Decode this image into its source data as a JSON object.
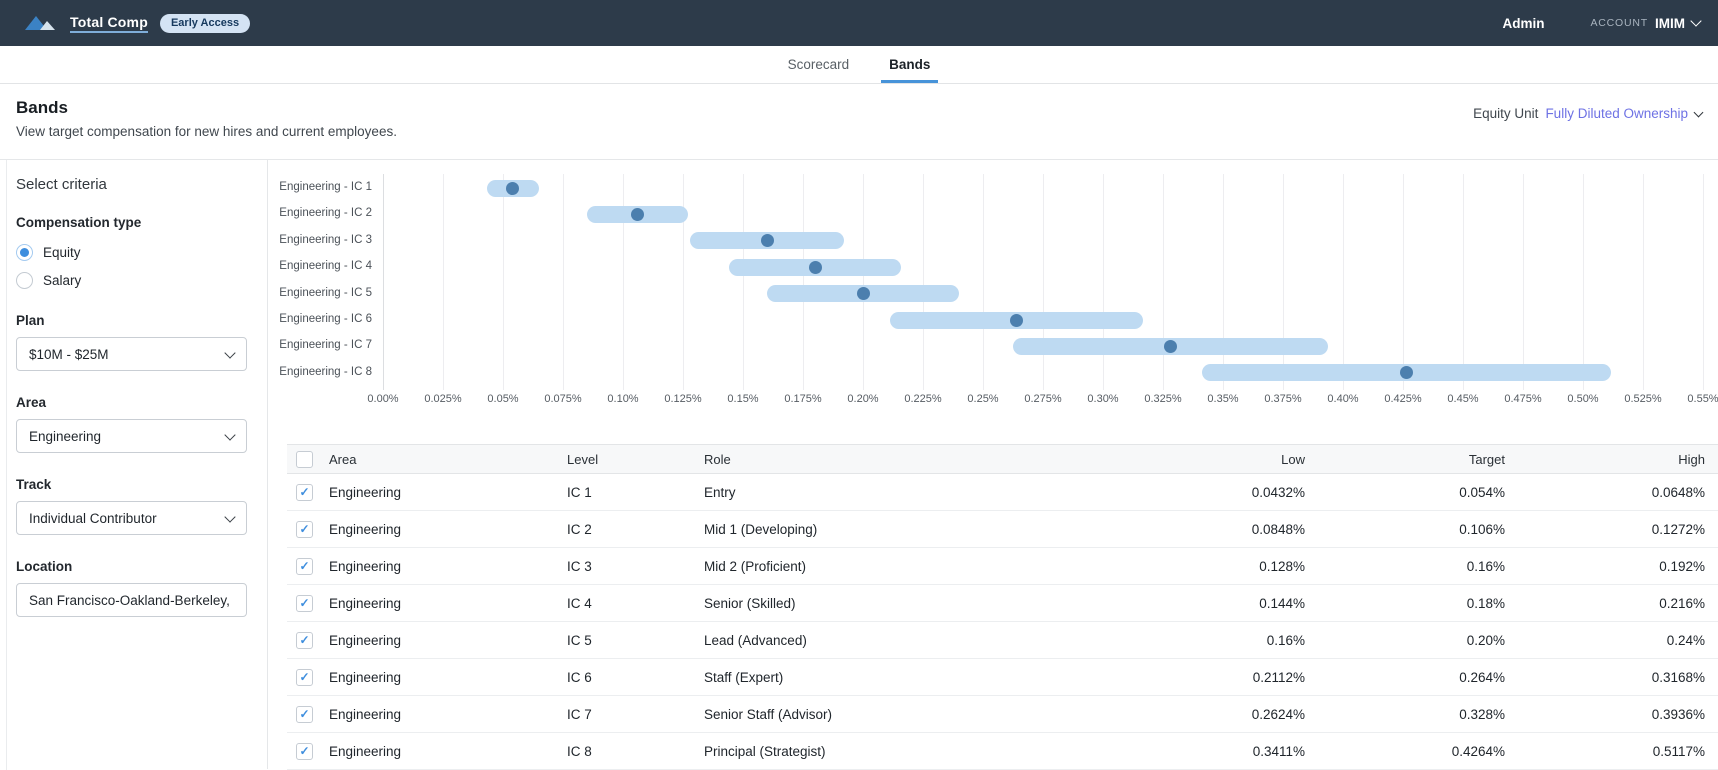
{
  "topbar": {
    "brand": "Total Comp",
    "badge": "Early Access",
    "admin": "Admin",
    "account_label": "ACCOUNT",
    "account_value": "IMIM"
  },
  "tabs": [
    {
      "label": "Scorecard",
      "active": false
    },
    {
      "label": "Bands",
      "active": true
    }
  ],
  "header": {
    "title": "Bands",
    "subtitle": "View target compensation for new hires and current employees.",
    "equity_unit_label": "Equity Unit",
    "equity_unit_value": "Fully Diluted Ownership"
  },
  "sidebar": {
    "title": "Select criteria",
    "comp_type_label": "Compensation type",
    "comp_type_options": [
      {
        "label": "Equity",
        "selected": true
      },
      {
        "label": "Salary",
        "selected": false
      }
    ],
    "plan": {
      "label": "Plan",
      "value": "$10M - $25M"
    },
    "area": {
      "label": "Area",
      "value": "Engineering"
    },
    "track": {
      "label": "Track",
      "value": "Individual Contributor"
    },
    "location": {
      "label": "Location",
      "value": "San Francisco-Oakland-Berkeley, C."
    }
  },
  "chart_data": {
    "type": "range-bar",
    "orientation": "horizontal",
    "categories": [
      "Engineering - IC 1",
      "Engineering - IC 2",
      "Engineering - IC 3",
      "Engineering - IC 4",
      "Engineering - IC 5",
      "Engineering - IC 6",
      "Engineering - IC 7",
      "Engineering - IC 8"
    ],
    "series": [
      {
        "name": "Low",
        "values": [
          0.0432,
          0.0848,
          0.128,
          0.144,
          0.16,
          0.2112,
          0.2624,
          0.3411
        ]
      },
      {
        "name": "Target",
        "values": [
          0.054,
          0.106,
          0.16,
          0.18,
          0.2,
          0.264,
          0.328,
          0.4264
        ]
      },
      {
        "name": "High",
        "values": [
          0.0648,
          0.1272,
          0.192,
          0.216,
          0.24,
          0.3168,
          0.3936,
          0.5117
        ]
      }
    ],
    "unit": "%",
    "xlim": [
      0,
      0.55
    ],
    "tick_step": 0.025,
    "x_ticks": [
      "0.00%",
      "0.025%",
      "0.05%",
      "0.075%",
      "0.10%",
      "0.125%",
      "0.15%",
      "0.175%",
      "0.20%",
      "0.225%",
      "0.25%",
      "0.275%",
      "0.30%",
      "0.325%",
      "0.35%",
      "0.375%",
      "0.40%",
      "0.425%",
      "0.45%",
      "0.475%",
      "0.50%",
      "0.525%",
      "0.55%"
    ],
    "grid": true,
    "band_color": "#bedaf2",
    "dot_color": "#4c7fae"
  },
  "table": {
    "columns": [
      "Area",
      "Level",
      "Role",
      "Low",
      "Target",
      "High"
    ],
    "rows": [
      {
        "checked": true,
        "area": "Engineering",
        "level": "IC 1",
        "role": "Entry",
        "low": "0.0432%",
        "target": "0.054%",
        "high": "0.0648%"
      },
      {
        "checked": true,
        "area": "Engineering",
        "level": "IC 2",
        "role": "Mid 1 (Developing)",
        "low": "0.0848%",
        "target": "0.106%",
        "high": "0.1272%"
      },
      {
        "checked": true,
        "area": "Engineering",
        "level": "IC 3",
        "role": "Mid 2 (Proficient)",
        "low": "0.128%",
        "target": "0.16%",
        "high": "0.192%"
      },
      {
        "checked": true,
        "area": "Engineering",
        "level": "IC 4",
        "role": "Senior (Skilled)",
        "low": "0.144%",
        "target": "0.18%",
        "high": "0.216%"
      },
      {
        "checked": true,
        "area": "Engineering",
        "level": "IC 5",
        "role": "Lead (Advanced)",
        "low": "0.16%",
        "target": "0.20%",
        "high": "0.24%"
      },
      {
        "checked": true,
        "area": "Engineering",
        "level": "IC 6",
        "role": "Staff (Expert)",
        "low": "0.2112%",
        "target": "0.264%",
        "high": "0.3168%"
      },
      {
        "checked": true,
        "area": "Engineering",
        "level": "IC 7",
        "role": "Senior Staff (Advisor)",
        "low": "0.2624%",
        "target": "0.328%",
        "high": "0.3936%"
      },
      {
        "checked": true,
        "area": "Engineering",
        "level": "IC 8",
        "role": "Principal (Strategist)",
        "low": "0.3411%",
        "target": "0.4264%",
        "high": "0.5117%"
      }
    ]
  },
  "colors": {
    "topbar_bg": "#2d3b4a",
    "accent_blue": "#4793d9",
    "link_purple": "#6e72e4",
    "band_fill": "#bedaf2",
    "target_dot": "#4c7fae"
  }
}
